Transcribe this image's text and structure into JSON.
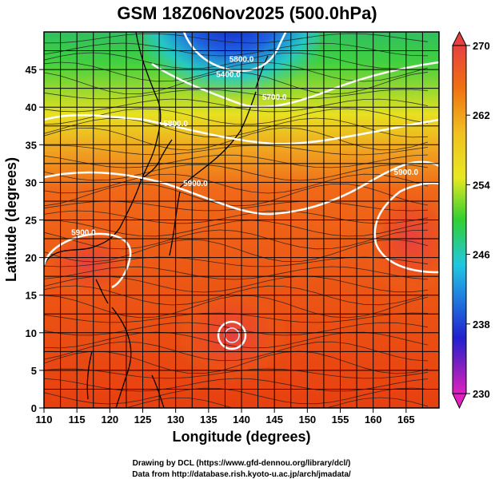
{
  "title": "GSM 18Z06Nov2025 (500.0hPa)",
  "xlabel": "Longitude (degrees)",
  "ylabel": "Latitude  (degrees)",
  "x_ticks": [
    "110",
    "115",
    "120",
    "125",
    "130",
    "135",
    "140",
    "145",
    "150",
    "155",
    "160",
    "165"
  ],
  "y_ticks": [
    "0",
    "5",
    "10",
    "15",
    "20",
    "25",
    "30",
    "35",
    "40",
    "45"
  ],
  "colorbar_ticks": [
    "270",
    "262",
    "254",
    "246",
    "238",
    "230"
  ],
  "contour_labels": [
    "5400.0",
    "5700.0",
    "5800.0",
    "5900.0",
    "5900.0",
    "5800.0",
    "5900.0"
  ],
  "credits": {
    "line1": "Drawing by DCL (https://www.gfd-dennou.org/library/dcl/)",
    "line2": "Data from http://database.rish.kyoto-u.ac.jp/arch/jmadata/"
  },
  "chart_data": {
    "type": "heatmap",
    "title": "GSM 18Z06Nov2025 (500.0hPa)",
    "xlabel": "Longitude (degrees)",
    "ylabel": "Latitude  (degrees)",
    "xlim": [
      110,
      170
    ],
    "ylim": [
      0,
      50
    ],
    "colorbar": {
      "min": 230,
      "max": 270,
      "ticks": [
        270,
        262,
        254,
        246,
        238,
        230
      ]
    },
    "colors": {
      "low": "#e020c0",
      "cold": "#2020d0",
      "cyan": "#20c8e0",
      "green": "#30d030",
      "yellow": "#e8e020",
      "orange": "#f07010",
      "warm": "#e03010",
      "high": "#e84040"
    },
    "contours": [
      {
        "label": "5400.0",
        "lon": 138,
        "lat": 44
      },
      {
        "label": "5700.0",
        "lon": 145,
        "lat": 41
      },
      {
        "label": "5800.0",
        "lon": 130,
        "lat": 37.5
      },
      {
        "label": "5900.0",
        "lon": 133,
        "lat": 29.5
      },
      {
        "label": "5900.0",
        "lon": 116,
        "lat": 23
      },
      {
        "label": "5800.0",
        "lon": 140,
        "lat": 46
      },
      {
        "label": "5900.0",
        "lon": 165,
        "lat": 31
      }
    ],
    "grid": true
  }
}
